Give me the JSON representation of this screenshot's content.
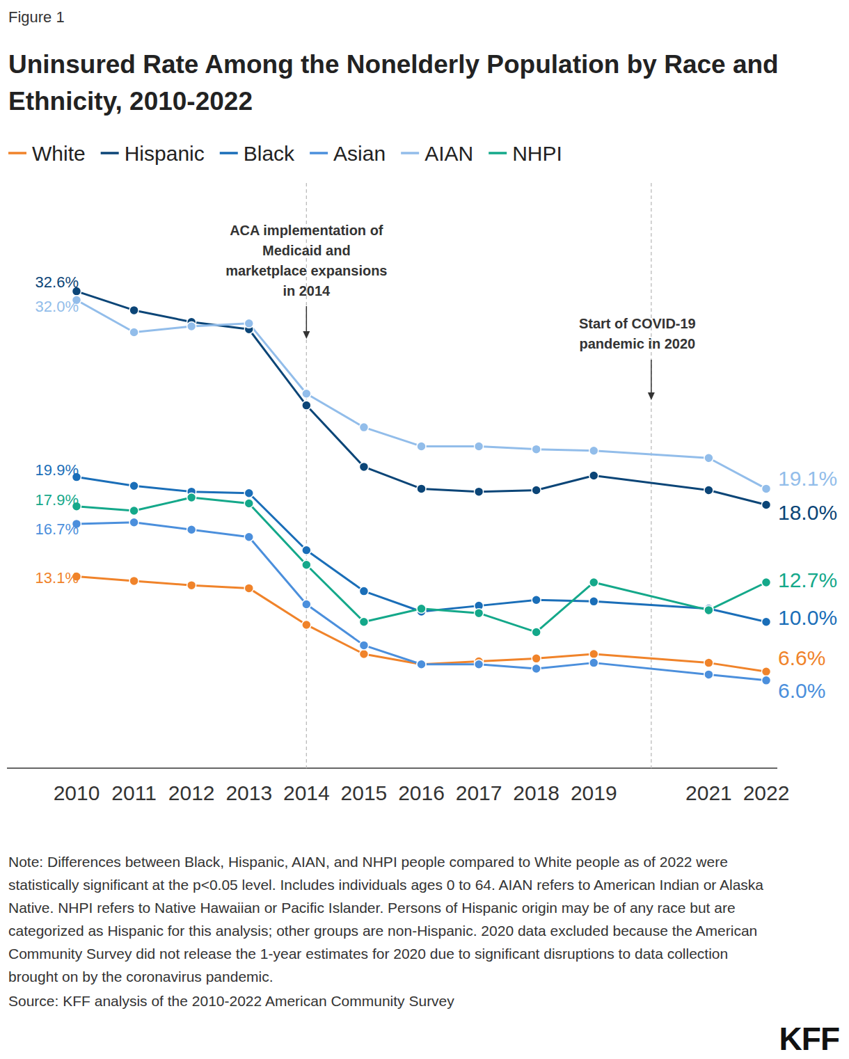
{
  "chart_data": {
    "type": "line",
    "label": "Figure 1",
    "title": "Uninsured Rate Among the Nonelderly Population by Race and Ethnicity, 2010-2022",
    "x": [
      2010,
      2011,
      2012,
      2013,
      2014,
      2015,
      2016,
      2017,
      2018,
      2019,
      2021,
      2022
    ],
    "xlim": [
      2010,
      2022
    ],
    "xticks": [
      2010,
      2011,
      2012,
      2013,
      2014,
      2015,
      2016,
      2017,
      2018,
      2019,
      2021,
      2022
    ],
    "ylim": [
      0,
      40
    ],
    "tick_labels": "x",
    "legend": "top",
    "marker": "circle",
    "line_style": "solid",
    "series": [
      {
        "name": "White",
        "color": "#f0832a",
        "values": [
          13.1,
          12.8,
          12.5,
          12.3,
          9.8,
          7.8,
          7.1,
          7.3,
          7.5,
          7.8,
          7.2,
          6.6
        ],
        "value_labels": [
          "13.1%",
          null,
          null,
          null,
          null,
          null,
          null,
          null,
          null,
          null,
          null,
          "6.6%"
        ]
      },
      {
        "name": "Hispanic",
        "color": "#0b4577",
        "values": [
          32.6,
          31.3,
          30.5,
          30.0,
          24.8,
          20.6,
          19.1,
          18.9,
          19.0,
          20.0,
          19.0,
          18.0
        ],
        "value_labels": [
          "32.6%",
          null,
          null,
          null,
          null,
          null,
          null,
          null,
          null,
          null,
          null,
          "18.0%"
        ]
      },
      {
        "name": "Black",
        "color": "#1a6eb8",
        "values": [
          19.9,
          19.3,
          18.9,
          18.8,
          14.9,
          12.1,
          10.7,
          11.1,
          11.5,
          11.4,
          10.9,
          10.0
        ],
        "value_labels": [
          "19.9%",
          null,
          null,
          null,
          null,
          null,
          null,
          null,
          null,
          null,
          null,
          "10.0%"
        ]
      },
      {
        "name": "Asian",
        "color": "#4b8fdc",
        "values": [
          16.7,
          16.8,
          16.3,
          15.8,
          11.2,
          8.4,
          7.1,
          7.1,
          6.8,
          7.2,
          6.4,
          6.0
        ],
        "value_labels": [
          "16.7%",
          null,
          null,
          null,
          null,
          null,
          null,
          null,
          null,
          null,
          null,
          "6.0%"
        ]
      },
      {
        "name": "AIAN",
        "color": "#92bdea",
        "values": [
          32.0,
          29.8,
          30.2,
          30.4,
          25.6,
          23.3,
          22.0,
          22.0,
          21.8,
          21.7,
          21.2,
          19.1
        ],
        "value_labels": [
          "32.0%",
          null,
          null,
          null,
          null,
          null,
          null,
          null,
          null,
          null,
          null,
          "19.1%"
        ]
      },
      {
        "name": "NHPI",
        "color": "#14a88a",
        "values": [
          17.9,
          17.6,
          18.5,
          18.1,
          13.9,
          10.0,
          10.9,
          10.6,
          9.3,
          12.7,
          10.8,
          12.7
        ],
        "value_labels": [
          "17.9%",
          null,
          null,
          null,
          null,
          null,
          null,
          null,
          null,
          null,
          null,
          "12.7%"
        ]
      }
    ],
    "annotations": [
      {
        "text": [
          "ACA implementation of",
          "Medicaid and",
          "marketplace expansions",
          "in 2014"
        ],
        "x": 2014
      },
      {
        "text": [
          "Start of COVID-19",
          "pandemic in 2020"
        ],
        "x": 2020
      }
    ],
    "note": "Note: Differences between Black, Hispanic, AIAN, and NHPI people compared to White people as of 2022 were statistically significant at the p<0.05 level. Includes individuals ages 0 to 64. AIAN refers to American Indian or Alaska Native. NHPI refers to Native Hawaiian or Pacific Islander. Persons of Hispanic origin may be of any race but are categorized as Hispanic for this analysis; other groups are non-Hispanic. 2020 data excluded because the American Community Survey did not release the 1-year estimates for 2020 due to significant disruptions to data collection brought on by the coronavirus pandemic.",
    "source": "Source: KFF analysis of the 2010-2022 American Community Survey",
    "logo": "KFF"
  }
}
